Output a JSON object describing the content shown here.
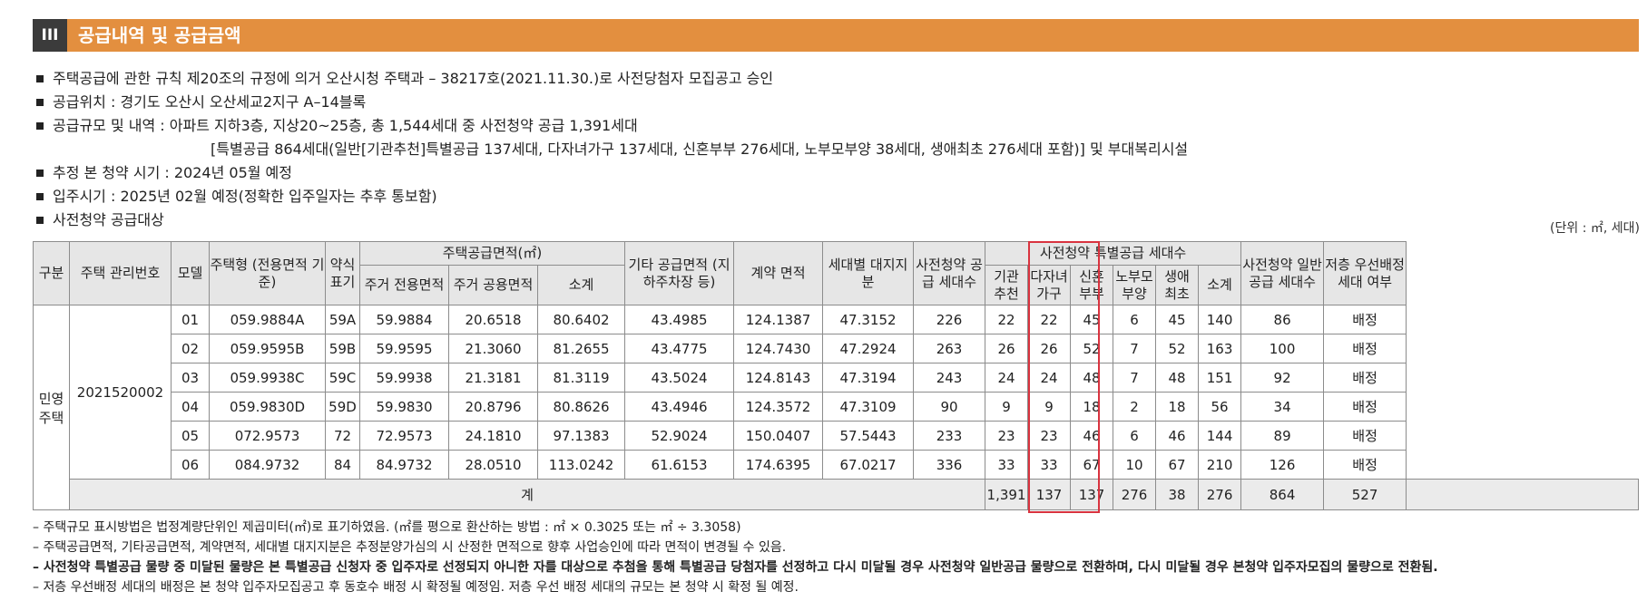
{
  "section": {
    "numeral": "III",
    "title": "공급내역 및 공급금액"
  },
  "bullets": [
    "주택공급에 관한 규칙 제20조의 규정에 의거 오산시청 주택과 – 38217호(2021.11.30.)로 사전당첨자 모집공고 승인",
    "공급위치 : 경기도 오산시 오산세교2지구 A–14블록",
    "공급규모 및 내역 : 아파트 지하3층, 지상20~25층, 총 1,544세대 중 사전청약 공급 1,391세대",
    "[특별공급 864세대(일반[기관추천]특별공급 137세대, 다자녀가구 137세대, 신혼부부 276세대, 노부모부양 38세대, 생애최초 276세대 포함)] 및 부대복리시설",
    "추정 본 청약 시기 : 2024년 05월 예정",
    "입주시기 : 2025년 02월 예정(정확한 입주일자는 추후 통보함)",
    "사전청약 공급대상"
  ],
  "unit": "(단위 : ㎡, 세대)",
  "table": {
    "h": {
      "gubun": "구분",
      "mgmt": "주택 관리번호",
      "model": "모델",
      "type": "주택형 (전용면적 기준)",
      "abbr": "약식 표기",
      "area_group": "주택공급면적(㎡)",
      "excl": "주거 전용면적",
      "common": "주거 공용면적",
      "subtotal": "소계",
      "other": "기타 공급면적 (지하주차장 등)",
      "contract": "계약 면적",
      "land": "세대별 대지지분",
      "pre_supply": "사전청약 공급 세대수",
      "special_group": "사전청약 특별공급 세대수",
      "inst": "기관 추천",
      "multi": "다자녀 가구",
      "newlywed": "신혼 부부",
      "elderly": "노부모 부양",
      "first": "생애 최초",
      "special_sub": "소계",
      "general": "사전청약 일반공급 세대수",
      "low": "저층 우선배정 세대 여부"
    },
    "category": "민영 주택",
    "mgmt_no": "2021520002",
    "rows": [
      {
        "model": "01",
        "type": "059.9884A",
        "abbr": "59A",
        "excl": "59.9884",
        "common": "20.6518",
        "subtotal": "80.6402",
        "other": "43.4985",
        "contract": "124.1387",
        "land": "47.3152",
        "supply": "226",
        "inst": "22",
        "multi": "22",
        "newlywed": "45",
        "elderly": "6",
        "first": "45",
        "sp_sub": "140",
        "general": "86",
        "low": "배정"
      },
      {
        "model": "02",
        "type": "059.9595B",
        "abbr": "59B",
        "excl": "59.9595",
        "common": "21.3060",
        "subtotal": "81.2655",
        "other": "43.4775",
        "contract": "124.7430",
        "land": "47.2924",
        "supply": "263",
        "inst": "26",
        "multi": "26",
        "newlywed": "52",
        "elderly": "7",
        "first": "52",
        "sp_sub": "163",
        "general": "100",
        "low": "배정"
      },
      {
        "model": "03",
        "type": "059.9938C",
        "abbr": "59C",
        "excl": "59.9938",
        "common": "21.3181",
        "subtotal": "81.3119",
        "other": "43.5024",
        "contract": "124.8143",
        "land": "47.3194",
        "supply": "243",
        "inst": "24",
        "multi": "24",
        "newlywed": "48",
        "elderly": "7",
        "first": "48",
        "sp_sub": "151",
        "general": "92",
        "low": "배정"
      },
      {
        "model": "04",
        "type": "059.9830D",
        "abbr": "59D",
        "excl": "59.9830",
        "common": "20.8796",
        "subtotal": "80.8626",
        "other": "43.4946",
        "contract": "124.3572",
        "land": "47.3109",
        "supply": "90",
        "inst": "9",
        "multi": "9",
        "newlywed": "18",
        "elderly": "2",
        "first": "18",
        "sp_sub": "56",
        "general": "34",
        "low": "배정"
      },
      {
        "model": "05",
        "type": "072.9573",
        "abbr": "72",
        "excl": "72.9573",
        "common": "24.1810",
        "subtotal": "97.1383",
        "other": "52.9024",
        "contract": "150.0407",
        "land": "57.5443",
        "supply": "233",
        "inst": "23",
        "multi": "23",
        "newlywed": "46",
        "elderly": "6",
        "first": "46",
        "sp_sub": "144",
        "general": "89",
        "low": "배정"
      },
      {
        "model": "06",
        "type": "084.9732",
        "abbr": "84",
        "excl": "84.9732",
        "common": "28.0510",
        "subtotal": "113.0242",
        "other": "61.6153",
        "contract": "174.6395",
        "land": "67.0217",
        "supply": "336",
        "inst": "33",
        "multi": "33",
        "newlywed": "67",
        "elderly": "10",
        "first": "67",
        "sp_sub": "210",
        "general": "126",
        "low": "배정"
      }
    ],
    "total": {
      "label": "계",
      "supply": "1,391",
      "inst": "137",
      "multi": "137",
      "newlywed": "276",
      "elderly": "38",
      "first": "276",
      "sp_sub": "864",
      "general": "527"
    }
  },
  "notes": [
    "– 주택규모 표시방법은 법정계량단위인 제곱미터(㎡)로 표기하였음. (㎡를 평으로 환산하는 방법 : ㎡ × 0.3025 또는 ㎡ ÷ 3.3058)",
    "– 주택공급면적, 기타공급면적, 계약면적, 세대별 대지지분은 추정분양가심의 시 산정한 면적으로 향후 사업승인에 따라 면적이 변경될 수 있음.",
    "– 사전청약 특별공급 물량 중 미달된 물량은 본 특별공급 신청자 중 입주자로 선정되지 아니한 자를 대상으로 추첨을 통해 특별공급 당첨자를 선정하고 다시 미달될 경우 사전청약 일반공급 물량으로 전환하며, 다시 미달될 경우 본청약 입주자모집의 물량으로 전환됨.",
    "– 저층 우선배정 세대의 배정은 본 청약 입주자모집공고 후 동호수 배정 시 확정될 예정임. 저층 우선 배정 세대의 규모는 본 청약 시 확정 될 예정."
  ]
}
